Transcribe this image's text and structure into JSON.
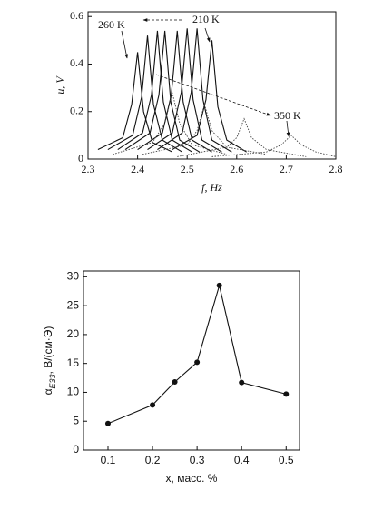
{
  "chart_data": [
    {
      "type": "line",
      "xlabel": "f, Hz",
      "ylabel": "u, V",
      "xlim": [
        2.3,
        2.8
      ],
      "xticks": [
        2.3,
        2.4,
        2.5,
        2.6,
        2.7,
        2.8
      ],
      "ylim": [
        0,
        0.62
      ],
      "yticks": [
        0,
        0.2,
        0.4,
        0.6
      ],
      "annotations": [
        "260 K",
        "210 K",
        "350 K"
      ],
      "series": [
        {
          "color": "#111111",
          "dash": false,
          "x": [
            2.32,
            2.37,
            2.388,
            2.4,
            2.412,
            2.43,
            2.47
          ],
          "values": [
            0.04,
            0.09,
            0.23,
            0.45,
            0.2,
            0.07,
            0.03
          ]
        },
        {
          "color": "#111111",
          "dash": false,
          "x": [
            2.34,
            2.39,
            2.408,
            2.42,
            2.432,
            2.45,
            2.49
          ],
          "values": [
            0.04,
            0.1,
            0.26,
            0.52,
            0.23,
            0.08,
            0.03
          ]
        },
        {
          "color": "#111111",
          "dash": false,
          "x": [
            2.36,
            2.41,
            2.428,
            2.44,
            2.452,
            2.47,
            2.51
          ],
          "values": [
            0.04,
            0.11,
            0.27,
            0.54,
            0.24,
            0.08,
            0.03
          ]
        },
        {
          "color": "#111111",
          "dash": false,
          "x": [
            2.375,
            2.425,
            2.443,
            2.455,
            2.467,
            2.485,
            2.525
          ],
          "values": [
            0.04,
            0.11,
            0.27,
            0.54,
            0.24,
            0.08,
            0.03
          ]
        },
        {
          "color": "#111111",
          "dash": false,
          "x": [
            2.4,
            2.45,
            2.468,
            2.48,
            2.492,
            2.51,
            2.55
          ],
          "values": [
            0.04,
            0.11,
            0.27,
            0.54,
            0.24,
            0.08,
            0.03
          ]
        },
        {
          "color": "#111111",
          "dash": false,
          "x": [
            2.42,
            2.47,
            2.488,
            2.5,
            2.512,
            2.53,
            2.57
          ],
          "values": [
            0.04,
            0.11,
            0.28,
            0.55,
            0.25,
            0.08,
            0.03
          ]
        },
        {
          "color": "#111111",
          "dash": false,
          "x": [
            2.44,
            2.49,
            2.508,
            2.52,
            2.532,
            2.55,
            2.59
          ],
          "values": [
            0.04,
            0.11,
            0.28,
            0.55,
            0.25,
            0.08,
            0.03
          ]
        },
        {
          "color": "#111111",
          "dash": false,
          "x": [
            2.47,
            2.52,
            2.538,
            2.55,
            2.562,
            2.58,
            2.62
          ],
          "values": [
            0.04,
            0.1,
            0.25,
            0.5,
            0.22,
            0.08,
            0.03
          ]
        },
        {
          "color": "#444444",
          "dash": true,
          "x": [
            2.35,
            2.43,
            2.455,
            2.47,
            2.485,
            2.51,
            2.58
          ],
          "values": [
            0.02,
            0.07,
            0.15,
            0.28,
            0.15,
            0.06,
            0.02
          ]
        },
        {
          "color": "#444444",
          "dash": true,
          "x": [
            2.41,
            2.5,
            2.52,
            2.535,
            2.55,
            2.58,
            2.66
          ],
          "values": [
            0.02,
            0.06,
            0.12,
            0.23,
            0.12,
            0.05,
            0.02
          ]
        },
        {
          "color": "#444444",
          "dash": true,
          "x": [
            2.48,
            2.58,
            2.6,
            2.615,
            2.63,
            2.66,
            2.74
          ],
          "values": [
            0.01,
            0.05,
            0.09,
            0.17,
            0.09,
            0.04,
            0.01
          ]
        },
        {
          "color": "#444444",
          "dash": true,
          "x": [
            2.55,
            2.66,
            2.69,
            2.71,
            2.73,
            2.76,
            2.8
          ],
          "values": [
            0.01,
            0.03,
            0.06,
            0.1,
            0.06,
            0.03,
            0.01
          ]
        }
      ]
    },
    {
      "type": "line",
      "xlabel": "x, масс. %",
      "ylabel": [
        "α",
        "E33",
        ", В/(см·Э)"
      ],
      "xlim": [
        0.045,
        0.53
      ],
      "xticks": [
        0.1,
        0.2,
        0.3,
        0.4,
        0.5
      ],
      "ylim": [
        0,
        31
      ],
      "yticks": [
        0,
        5,
        10,
        15,
        20,
        25,
        30
      ],
      "markers": true,
      "series": [
        {
          "color": "#111111",
          "dash": false,
          "x": [
            0.1,
            0.2,
            0.25,
            0.3,
            0.35,
            0.4,
            0.5
          ],
          "values": [
            4.6,
            7.8,
            11.8,
            15.2,
            28.5,
            11.7,
            9.7
          ]
        }
      ]
    }
  ]
}
